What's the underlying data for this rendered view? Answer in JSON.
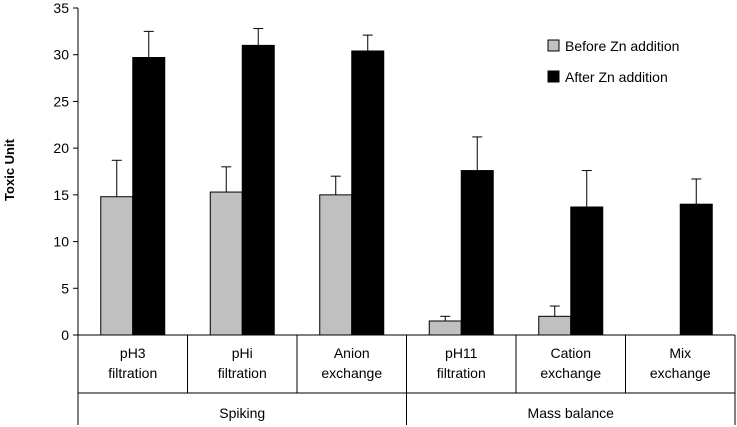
{
  "chart_data": {
    "type": "bar",
    "ylabel": "Toxic Unit",
    "xlabel": "",
    "ylim": [
      0,
      35
    ],
    "yticks": [
      0,
      5,
      10,
      15,
      20,
      25,
      30,
      35
    ],
    "categories": [
      [
        "pH3",
        "filtration"
      ],
      [
        "pHi",
        "filtration"
      ],
      [
        "Anion",
        "exchange"
      ],
      [
        "pH11",
        "filtration"
      ],
      [
        "Cation",
        "exchange"
      ],
      [
        "Mix",
        "exchange"
      ]
    ],
    "groups": [
      {
        "label": "Spiking",
        "start": 0,
        "end": 2
      },
      {
        "label": "Mass balance",
        "start": 3,
        "end": 5
      }
    ],
    "series": [
      {
        "name": "Before Zn addition",
        "color": "#c0c0c0",
        "values": [
          14.8,
          15.3,
          15.0,
          1.5,
          2.0,
          null
        ],
        "errors": [
          3.9,
          2.7,
          2.0,
          0.5,
          1.1,
          null
        ]
      },
      {
        "name": "After Zn addition",
        "color": "#000000",
        "values": [
          29.7,
          31.0,
          30.4,
          17.6,
          13.7,
          14.0
        ],
        "errors": [
          2.8,
          1.8,
          1.7,
          3.6,
          3.9,
          2.7
        ]
      }
    ],
    "legend_position": "top-right",
    "grid": false
  }
}
